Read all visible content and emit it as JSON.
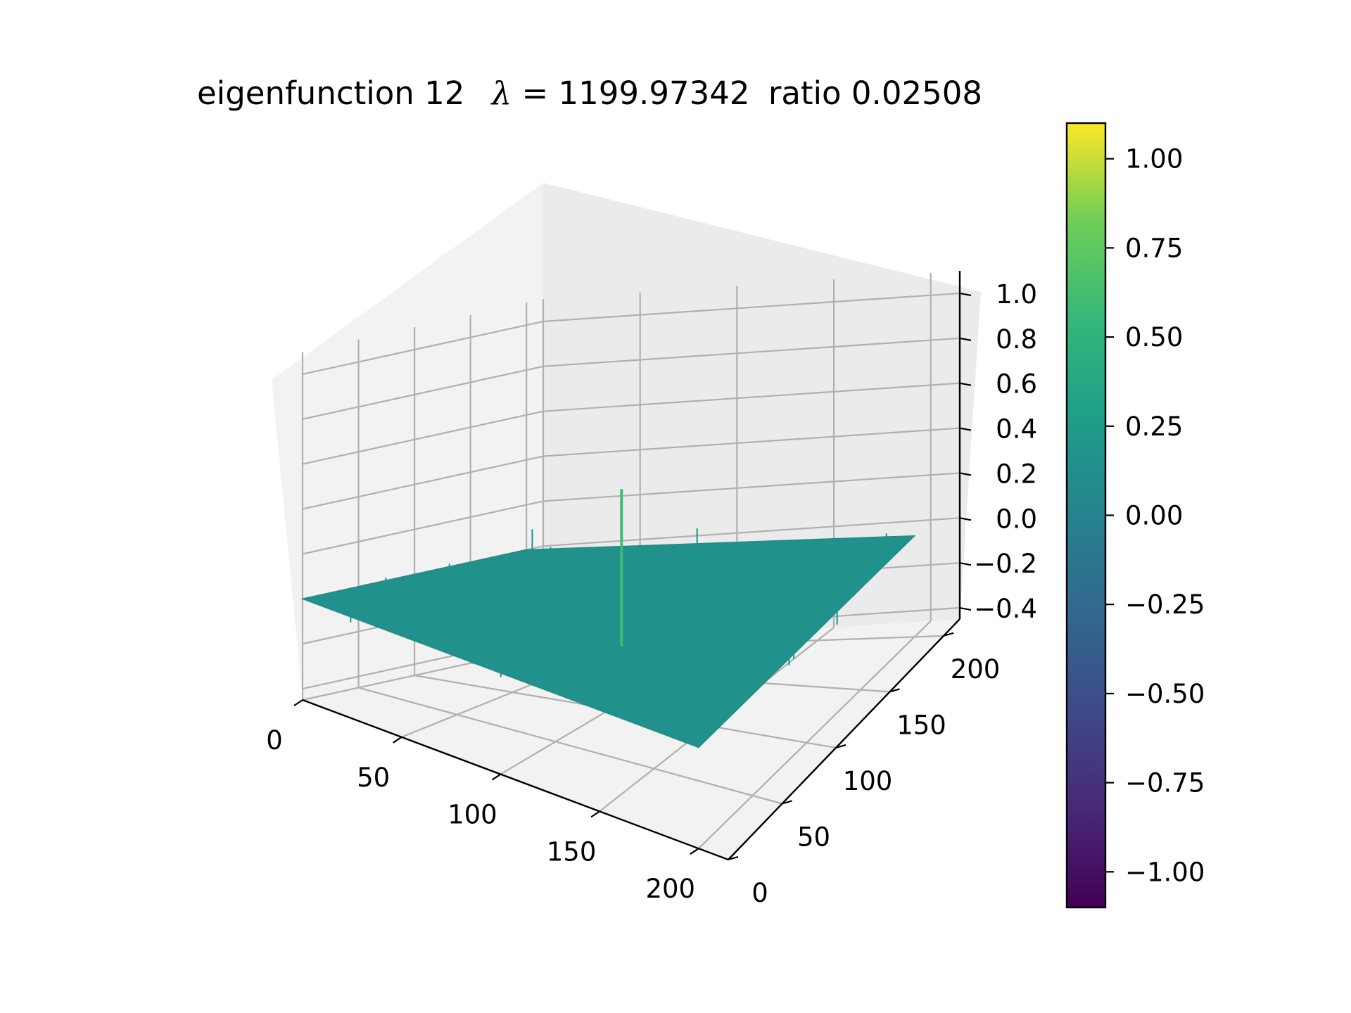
{
  "chart_data": {
    "type": "surface",
    "title": "eigenfunction 12  λ = 1199.97342 ratio 0.02508",
    "title_parts": {
      "label": "eigenfunction 12",
      "lambda_symbol": "λ",
      "lambda_eq": "= 1199.97342",
      "ratio_text": "ratio 0.02508"
    },
    "x_ticks": [
      "0",
      "50",
      "100",
      "150",
      "200"
    ],
    "y_ticks": [
      "0",
      "50",
      "100",
      "150",
      "200"
    ],
    "z_ticks": [
      "−0.4",
      "−0.2",
      "0.0",
      "0.2",
      "0.4",
      "0.6",
      "0.8",
      "1.0"
    ],
    "x_range": [
      0,
      215
    ],
    "y_range": [
      0,
      215
    ],
    "z_range": [
      -0.45,
      1.1
    ],
    "surface_level": 0.0,
    "spike": {
      "x": 100,
      "y": 110,
      "z_min": -0.2,
      "z_max": 0.5
    },
    "colorbar": {
      "colormap": "viridis",
      "range": [
        -1.1,
        1.1
      ],
      "ticks": [
        "−1.00",
        "−0.75",
        "−0.50",
        "−0.25",
        "0.00",
        "0.25",
        "0.50",
        "0.75",
        "1.00"
      ],
      "tick_values": [
        -1.0,
        -0.75,
        -0.5,
        -0.25,
        0.0,
        0.25,
        0.5,
        0.75,
        1.0
      ]
    },
    "colors": {
      "surface": "#21918c",
      "pane": "#f2f2f2",
      "grid": "#b0b0b0"
    }
  }
}
